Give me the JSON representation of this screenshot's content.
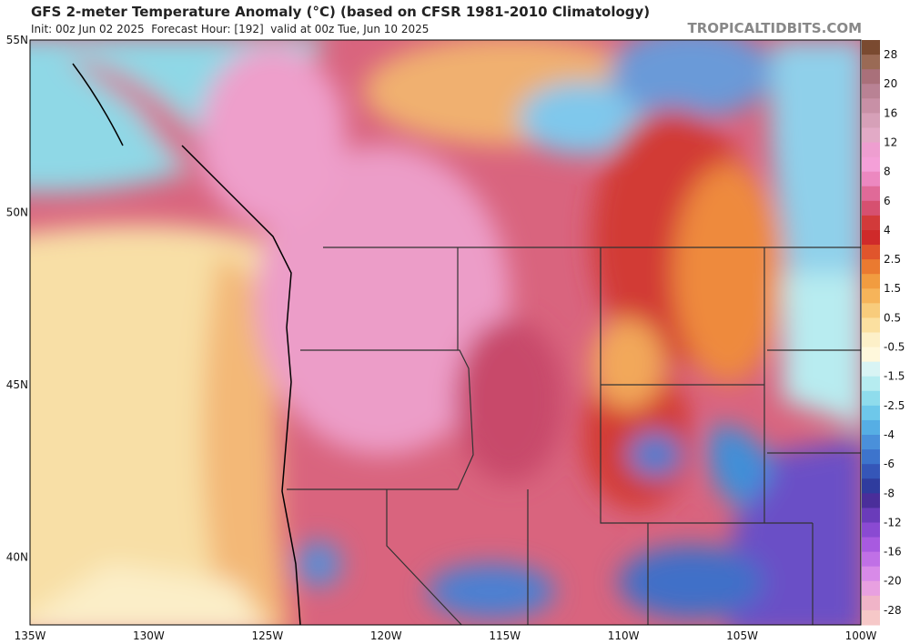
{
  "header": {
    "title": "GFS 2-meter Temperature Anomaly (°C) (based on CFSR 1981-2010 Climatology)",
    "subtitle": "Init: 00z Jun 02 2025  Forecast Hour: [192]  valid at 00z Tue, Jun 10 2025",
    "source": "TROPICALTIDBITS.COM"
  },
  "map": {
    "latitude_labels": [
      "55N",
      "50N",
      "45N",
      "40N"
    ],
    "longitude_labels": [
      "135W",
      "130W",
      "125W",
      "120W",
      "115W",
      "110W",
      "105W",
      "100W"
    ]
  },
  "colorbar": {
    "labels": [
      "28",
      "20",
      "16",
      "12",
      "8",
      "6",
      "4",
      "2.5",
      "1.5",
      "0.5",
      "-0.5",
      "-1.5",
      "-2.5",
      "-4",
      "-6",
      "-8",
      "-12",
      "-16",
      "-20",
      "-28"
    ]
  }
}
